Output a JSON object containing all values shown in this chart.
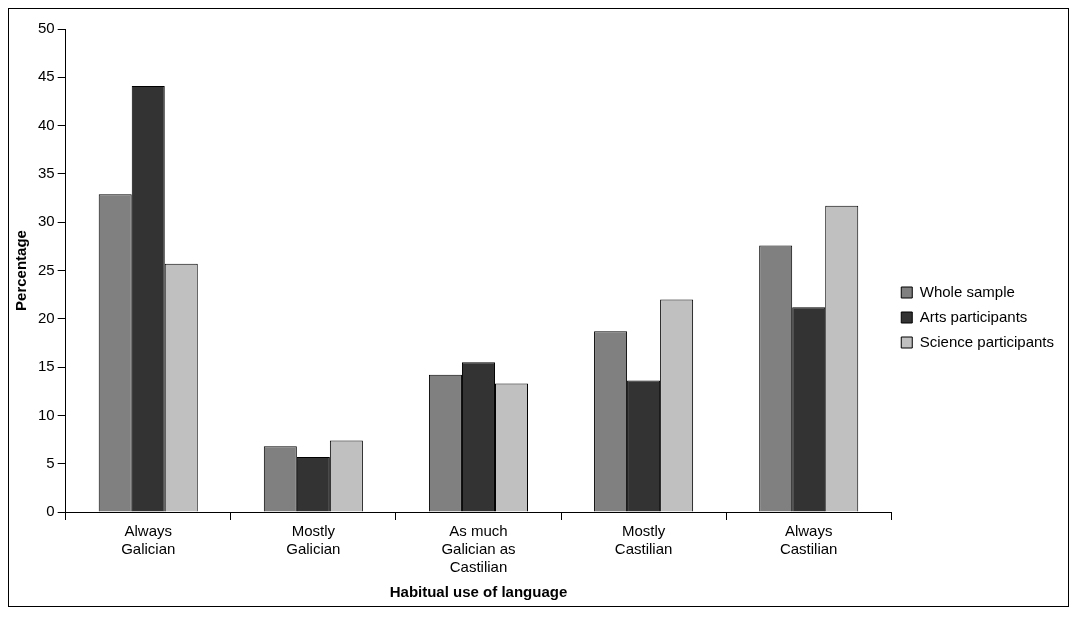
{
  "chart_data": {
    "type": "bar",
    "xlabel": "Habitual use of language",
    "ylabel": "Percentage",
    "categories": [
      "Always Galician",
      "Mostly Galician",
      "As much Galician as Castilian",
      "Mostly Castilian",
      "Always Castilian"
    ],
    "series": [
      {
        "name": "Whole sample",
        "color": "#808080",
        "values": [
          32.9,
          6.8,
          14.2,
          18.7,
          27.6
        ]
      },
      {
        "name": "Arts participants",
        "color": "#333333",
        "values": [
          44.1,
          5.7,
          15.5,
          13.6,
          21.2
        ]
      },
      {
        "name": "Science participants",
        "color": "#c0c0c0",
        "values": [
          25.7,
          7.4,
          13.3,
          22.0,
          31.7
        ]
      }
    ],
    "ylim": [
      0,
      50
    ],
    "yticks": [
      0,
      5,
      10,
      15,
      20,
      25,
      30,
      35,
      40,
      45,
      50
    ],
    "grid": false,
    "legend": "right"
  }
}
